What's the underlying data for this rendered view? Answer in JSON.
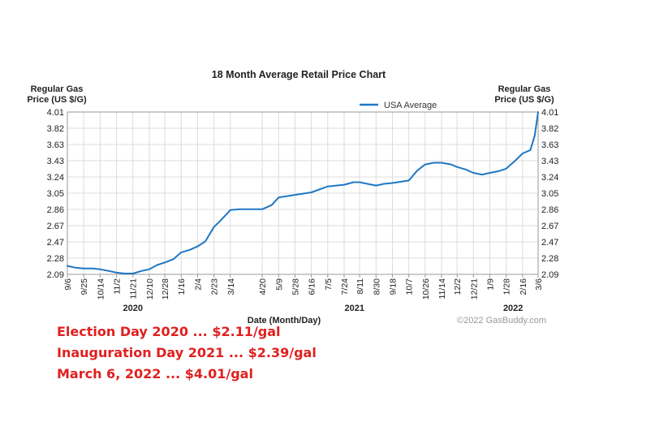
{
  "chart_data": {
    "type": "line",
    "title": "18 Month Average Retail Price Chart",
    "ylabel_left": "Regular Gas\nPrice (US $/G)",
    "ylabel_right": "Regular Gas\nPrice (US $/G)",
    "xlabel": "Date (Month/Day)",
    "legend": {
      "position": "top-right",
      "label": "USA Average"
    },
    "grid": true,
    "ylim": [
      2.09,
      4.01
    ],
    "yticks": [
      "4.01",
      "3.82",
      "3.63",
      "3.43",
      "3.24",
      "3.05",
      "2.86",
      "2.67",
      "2.47",
      "2.28",
      "2.09"
    ],
    "xlim": [
      "2020-09-06",
      "2022-03-06"
    ],
    "xticks": [
      {
        "label": "9/6",
        "date": "2020-09-06"
      },
      {
        "label": "9/25",
        "date": "2020-09-25"
      },
      {
        "label": "10/14",
        "date": "2020-10-14"
      },
      {
        "label": "11/2",
        "date": "2020-11-02"
      },
      {
        "label": "11/21",
        "date": "2020-11-21"
      },
      {
        "label": "12/10",
        "date": "2020-12-10"
      },
      {
        "label": "12/28",
        "date": "2020-12-28"
      },
      {
        "label": "1/16",
        "date": "2021-01-16"
      },
      {
        "label": "2/4",
        "date": "2021-02-04"
      },
      {
        "label": "2/23",
        "date": "2021-02-23"
      },
      {
        "label": "3/14",
        "date": "2021-03-14"
      },
      {
        "label": "4/20",
        "date": "2021-04-20"
      },
      {
        "label": "5/9",
        "date": "2021-05-09"
      },
      {
        "label": "5/28",
        "date": "2021-05-28"
      },
      {
        "label": "6/16",
        "date": "2021-06-16"
      },
      {
        "label": "7/5",
        "date": "2021-07-05"
      },
      {
        "label": "7/24",
        "date": "2021-07-24"
      },
      {
        "label": "8/11",
        "date": "2021-08-11"
      },
      {
        "label": "8/30",
        "date": "2021-08-30"
      },
      {
        "label": "9/18",
        "date": "2021-09-18"
      },
      {
        "label": "10/7",
        "date": "2021-10-07"
      },
      {
        "label": "10/26",
        "date": "2021-10-26"
      },
      {
        "label": "11/14",
        "date": "2021-11-14"
      },
      {
        "label": "12/2",
        "date": "2021-12-02"
      },
      {
        "label": "12/21",
        "date": "2021-12-21"
      },
      {
        "label": "1/9",
        "date": "2022-01-09"
      },
      {
        "label": "1/28",
        "date": "2022-01-28"
      },
      {
        "label": "2/16",
        "date": "2022-02-16"
      },
      {
        "label": "3/6",
        "date": "2022-03-06"
      }
    ],
    "year_labels": [
      {
        "label": "2020",
        "date": "2020-11-21"
      },
      {
        "label": "2021",
        "date": "2021-08-05"
      },
      {
        "label": "2022",
        "date": "2022-02-05"
      }
    ],
    "series": [
      {
        "name": "USA Average",
        "color": "#1f77c4",
        "points": [
          [
            "2020-09-06",
            2.19
          ],
          [
            "2020-09-15",
            2.17
          ],
          [
            "2020-09-25",
            2.16
          ],
          [
            "2020-10-05",
            2.16
          ],
          [
            "2020-10-14",
            2.15
          ],
          [
            "2020-10-24",
            2.13
          ],
          [
            "2020-11-02",
            2.11
          ],
          [
            "2020-11-12",
            2.1
          ],
          [
            "2020-11-21",
            2.1
          ],
          [
            "2020-12-01",
            2.13
          ],
          [
            "2020-12-10",
            2.15
          ],
          [
            "2020-12-19",
            2.2
          ],
          [
            "2020-12-28",
            2.23
          ],
          [
            "2021-01-07",
            2.27
          ],
          [
            "2021-01-16",
            2.35
          ],
          [
            "2021-01-26",
            2.38
          ],
          [
            "2021-02-04",
            2.42
          ],
          [
            "2021-02-13",
            2.48
          ],
          [
            "2021-02-23",
            2.65
          ],
          [
            "2021-03-03",
            2.73
          ],
          [
            "2021-03-14",
            2.85
          ],
          [
            "2021-03-25",
            2.86
          ],
          [
            "2021-04-05",
            2.86
          ],
          [
            "2021-04-20",
            2.86
          ],
          [
            "2021-05-01",
            2.91
          ],
          [
            "2021-05-09",
            3.0
          ],
          [
            "2021-05-28",
            3.03
          ],
          [
            "2021-06-16",
            3.06
          ],
          [
            "2021-07-05",
            3.13
          ],
          [
            "2021-07-24",
            3.15
          ],
          [
            "2021-08-04",
            3.18
          ],
          [
            "2021-08-11",
            3.18
          ],
          [
            "2021-08-20",
            3.16
          ],
          [
            "2021-08-30",
            3.14
          ],
          [
            "2021-09-08",
            3.16
          ],
          [
            "2021-09-18",
            3.17
          ],
          [
            "2021-10-07",
            3.2
          ],
          [
            "2021-10-17",
            3.32
          ],
          [
            "2021-10-26",
            3.39
          ],
          [
            "2021-11-05",
            3.41
          ],
          [
            "2021-11-14",
            3.41
          ],
          [
            "2021-11-25",
            3.39
          ],
          [
            "2021-12-02",
            3.36
          ],
          [
            "2021-12-12",
            3.33
          ],
          [
            "2021-12-21",
            3.29
          ],
          [
            "2021-12-31",
            3.27
          ],
          [
            "2022-01-09",
            3.29
          ],
          [
            "2022-01-19",
            3.31
          ],
          [
            "2022-01-28",
            3.34
          ],
          [
            "2022-02-07",
            3.43
          ],
          [
            "2022-02-16",
            3.52
          ],
          [
            "2022-02-25",
            3.56
          ],
          [
            "2022-03-02",
            3.73
          ],
          [
            "2022-03-06",
            4.01
          ]
        ]
      }
    ],
    "watermark": "©2022 GasBuddy.com"
  },
  "annotations": [
    "Election Day 2020 ... $2.11/gal",
    "Inauguration Day 2021 ... $2.39/gal",
    "March 6, 2022 ... $4.01/gal"
  ],
  "colors": {
    "line": "#1f77c4",
    "annotation": "#e02020",
    "grid": "#dcdcdc",
    "frame": "#999999"
  }
}
